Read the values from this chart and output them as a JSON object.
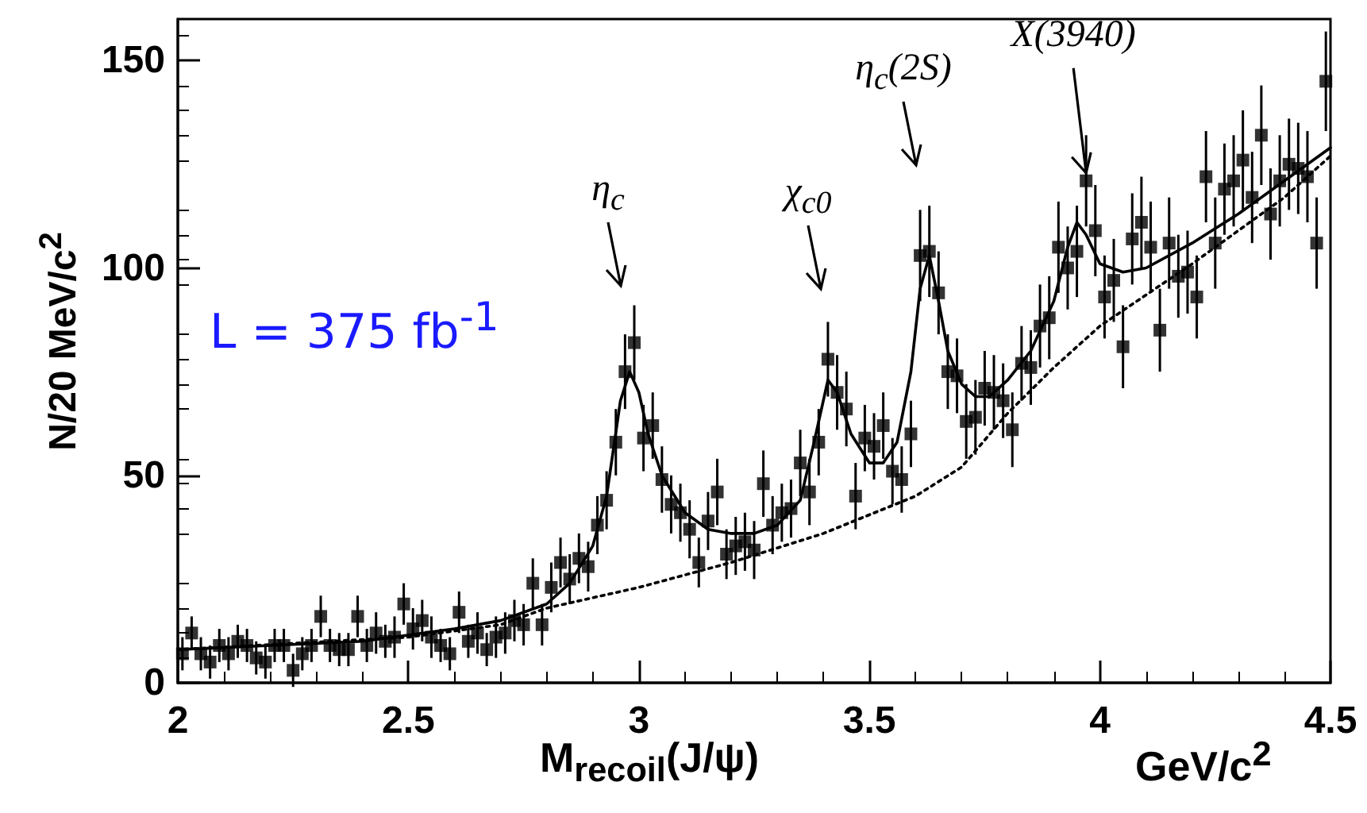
{
  "chart_data": {
    "type": "scatter",
    "xlabel": "M$_{recoil}$(J/ψ)",
    "ylabel": "N/20 MeV/c$^{2}$",
    "annotations": [
      "L = 375 fb$^{-1}$",
      "GeV/c$^{2}$",
      "η$_{c}$",
      "χ$_{c0}$",
      "η$_{c}$(2S)",
      {
        "text": "X(3940)",
        "x": 3.97,
        "y": 121
      }
    ],
    "xlim": [
      2,
      4.5
    ],
    "xticks": [
      2,
      2.5,
      3,
      3.5,
      4,
      4.5
    ],
    "ylim": [
      0,
      160
    ],
    "yticks": [
      0,
      50,
      100,
      150
    ],
    "grid": false,
    "series": [
      {
        "color": "#000000",
        "marker": "square",
        "x": [
          2.01,
          2.03,
          2.05,
          2.07,
          2.09,
          2.11,
          2.13,
          2.15,
          2.17,
          2.19,
          2.21,
          2.23,
          2.25,
          2.27,
          2.29,
          2.31,
          2.33,
          2.35,
          2.37,
          2.39,
          2.41,
          2.43,
          2.45,
          2.47,
          2.49,
          2.51,
          2.53,
          2.55,
          2.57,
          2.59,
          2.61,
          2.63,
          2.65,
          2.67,
          2.69,
          2.71,
          2.73,
          2.75,
          2.77,
          2.79,
          2.81,
          2.83,
          2.85,
          2.87,
          2.89,
          2.91,
          2.93,
          2.95,
          2.97,
          2.99,
          3.01,
          3.03,
          3.05,
          3.07,
          3.09,
          3.11,
          3.13,
          3.15,
          3.17,
          3.19,
          3.21,
          3.23,
          3.25,
          3.27,
          3.29,
          3.31,
          3.33,
          3.35,
          3.37,
          3.39,
          3.41,
          3.43,
          3.45,
          3.47,
          3.49,
          3.51,
          3.53,
          3.55,
          3.57,
          3.59,
          3.61,
          3.63,
          3.65,
          3.67,
          3.69,
          3.71,
          3.73,
          3.75,
          3.77,
          3.79,
          3.81,
          3.83,
          3.85,
          3.87,
          3.89,
          3.91,
          3.93,
          3.95,
          3.97,
          3.99,
          4.01,
          4.03,
          4.05,
          4.07,
          4.09,
          4.11,
          4.13,
          4.15,
          4.17,
          4.19,
          4.21,
          4.23,
          4.25,
          4.27,
          4.29,
          4.31,
          4.33,
          4.35,
          4.37,
          4.39,
          4.41,
          4.43,
          4.45,
          4.47,
          4.49
        ],
        "values": [
          7,
          12,
          7,
          5,
          9,
          7,
          10,
          9,
          6,
          5,
          9,
          9,
          3,
          7,
          9,
          16,
          9,
          8,
          8,
          16,
          9,
          12,
          10,
          11,
          19,
          13,
          15,
          11,
          9,
          7,
          17,
          10,
          12,
          8,
          11,
          12,
          15,
          14,
          24,
          14,
          23,
          29,
          25,
          30,
          28,
          38,
          44,
          58,
          75,
          82,
          59,
          62,
          49,
          43,
          41,
          37,
          29,
          39,
          46,
          31,
          33,
          34,
          32,
          48,
          38,
          41,
          42,
          53,
          46,
          58,
          78,
          70,
          66,
          45,
          59,
          57,
          62,
          51,
          49,
          60,
          103,
          104,
          94,
          75,
          74,
          63,
          64,
          71,
          70,
          68,
          61,
          77,
          76,
          86,
          88,
          105,
          100,
          104,
          121,
          109,
          93,
          97,
          81,
          107,
          111,
          105,
          85,
          106,
          98,
          99,
          93,
          122,
          106,
          119,
          121,
          126,
          117,
          132,
          113,
          121,
          125,
          124,
          122,
          106,
          145
        ],
        "errors": [
          4,
          4,
          4,
          4,
          4,
          4,
          4,
          4,
          4,
          4,
          4,
          4,
          4,
          4,
          4,
          5,
          4,
          4,
          4,
          5,
          4,
          5,
          4,
          5,
          5,
          5,
          5,
          5,
          4,
          4,
          5,
          4,
          5,
          4,
          5,
          5,
          5,
          5,
          6,
          5,
          6,
          6,
          6,
          6,
          6,
          7,
          7,
          8,
          9,
          9,
          8,
          8,
          8,
          7,
          7,
          7,
          6,
          7,
          8,
          6,
          7,
          7,
          7,
          8,
          7,
          7,
          7,
          8,
          8,
          8,
          9,
          9,
          9,
          8,
          8,
          8,
          8,
          8,
          8,
          8,
          11,
          11,
          10,
          9,
          9,
          9,
          9,
          9,
          9,
          9,
          9,
          9,
          9,
          10,
          10,
          11,
          10,
          11,
          11,
          11,
          10,
          10,
          10,
          11,
          11,
          11,
          10,
          11,
          10,
          10,
          10,
          11,
          11,
          11,
          11,
          12,
          11,
          12,
          11,
          11,
          11,
          11,
          11,
          11,
          12
        ]
      },
      {
        "type": "line",
        "color": "#000000",
        "marker": "none",
        "line_style": "solid",
        "x": [
          2.0,
          2.2,
          2.4,
          2.6,
          2.7,
          2.8,
          2.85,
          2.9,
          2.93,
          2.96,
          2.98,
          3.0,
          3.02,
          3.05,
          3.1,
          3.15,
          3.2,
          3.25,
          3.3,
          3.35,
          3.38,
          3.41,
          3.43,
          3.46,
          3.5,
          3.53,
          3.56,
          3.59,
          3.61,
          3.63,
          3.65,
          3.67,
          3.7,
          3.73,
          3.76,
          3.8,
          3.85,
          3.9,
          3.93,
          3.95,
          3.97,
          4.0,
          4.05,
          4.1,
          4.2,
          4.3,
          4.4,
          4.5
        ],
        "values": [
          8,
          9,
          10,
          13,
          15,
          19,
          24,
          33,
          45,
          68,
          75,
          70,
          60,
          50,
          41,
          37,
          36,
          36,
          38,
          44,
          58,
          73,
          70,
          60,
          53,
          53,
          58,
          75,
          95,
          103,
          92,
          80,
          72,
          69,
          69,
          73,
          80,
          92,
          105,
          111,
          108,
          101,
          99,
          100,
          106,
          113,
          121,
          129
        ]
      },
      {
        "type": "line",
        "color": "#000000",
        "marker": "none",
        "line_style": "dotted",
        "x": [
          2.0,
          2.5,
          2.7,
          2.8,
          3.0,
          3.2,
          3.4,
          3.6,
          3.7,
          3.8,
          3.9,
          4.0,
          4.2,
          4.4,
          4.5
        ],
        "values": [
          8,
          11,
          14,
          18,
          23,
          29,
          36,
          45,
          52,
          65,
          76,
          86,
          101,
          117,
          127
        ]
      }
    ]
  }
}
